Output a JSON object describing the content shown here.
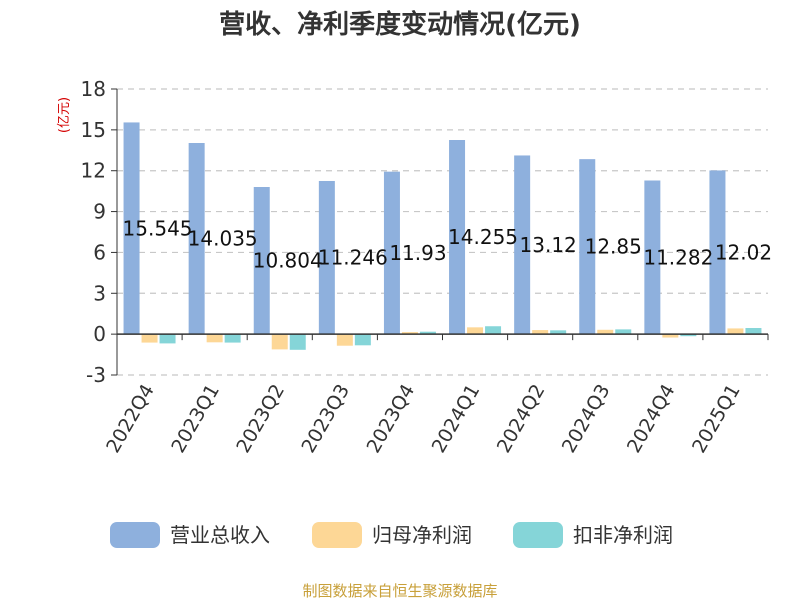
{
  "colors": {
    "revenue": "#8eb0dd",
    "parent_net_profit": "#fdd796",
    "non_gaap_net_profit": "#85d5d8",
    "grid": "#c8c8c8",
    "axis": "#333333",
    "unit": "#d40000",
    "source": "#c8a03a"
  },
  "chart_data": {
    "type": "bar",
    "title": "营收、净利季度变动情况(亿元)",
    "ylabel": "(亿元)",
    "ylim": [
      -3,
      18
    ],
    "yticks": [
      -3,
      0,
      3,
      6,
      9,
      12,
      15,
      18
    ],
    "grid": true,
    "legend_position": "bottom",
    "categories": [
      "2022Q4",
      "2023Q1",
      "2023Q2",
      "2023Q3",
      "2023Q4",
      "2024Q1",
      "2024Q2",
      "2024Q3",
      "2024Q4",
      "2025Q1"
    ],
    "series": [
      {
        "name": "营业总收入",
        "values": [
          15.545,
          14.035,
          10.804,
          11.246,
          11.93,
          14.255,
          13.12,
          12.85,
          11.282,
          12.02
        ],
        "labels": [
          "15.545",
          "14.035",
          "10.804",
          "11.246",
          "11.93",
          "14.255",
          "13.12",
          "12.85",
          "11.282",
          "12.02"
        ]
      },
      {
        "name": "归母净利润",
        "values": [
          -0.62,
          -0.6,
          -1.12,
          -0.85,
          0.15,
          0.5,
          0.3,
          0.32,
          -0.25,
          0.42
        ]
      },
      {
        "name": "扣非净利润",
        "values": [
          -0.68,
          -0.62,
          -1.15,
          -0.82,
          0.18,
          0.58,
          0.28,
          0.35,
          -0.15,
          0.45
        ]
      }
    ]
  },
  "source_note": "制图数据来自恒生聚源数据库"
}
